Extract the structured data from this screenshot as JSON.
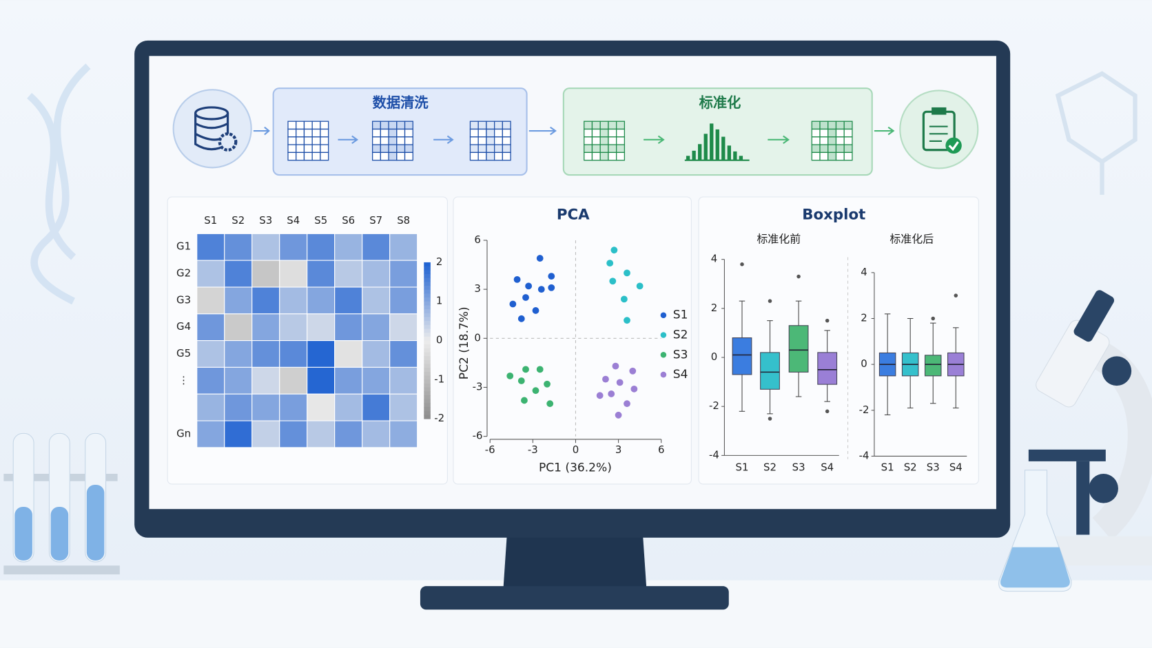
{
  "pipeline": {
    "steps": [
      "数据清洗",
      "标准化"
    ]
  },
  "chart_data": [
    {
      "type": "heatmap",
      "columns": [
        "S1",
        "S2",
        "S3",
        "S4",
        "S5",
        "S6",
        "S7",
        "S8"
      ],
      "rows": [
        "G1",
        "G2",
        "G3",
        "G4",
        "G5",
        "⋮",
        null,
        "Gn"
      ],
      "values": [
        [
          1.5,
          1.3,
          0.6,
          1.2,
          1.4,
          0.8,
          1.4,
          0.8
        ],
        [
          0.6,
          1.5,
          -0.8,
          -0.3,
          1.4,
          0.5,
          0.7,
          1.1
        ],
        [
          -0.5,
          1.0,
          1.5,
          0.7,
          1.0,
          1.5,
          0.6,
          1.1
        ],
        [
          1.2,
          -0.7,
          1.0,
          0.5,
          0.3,
          1.2,
          1.0,
          0.3
        ],
        [
          0.6,
          1.0,
          1.3,
          1.4,
          1.9,
          -0.2,
          0.7,
          1.3
        ],
        [
          1.2,
          1.0,
          0.3,
          -0.6,
          1.9,
          1.1,
          1.0,
          0.7
        ],
        [
          0.8,
          1.2,
          1.0,
          1.1,
          -0.1,
          0.7,
          1.6,
          0.6
        ],
        [
          1.0,
          1.8,
          0.4,
          1.3,
          0.5,
          1.2,
          0.7,
          0.9
        ]
      ],
      "clim": [
        -2,
        2
      ],
      "cticks": [
        2,
        1,
        0,
        -1,
        -2
      ],
      "colormap": [
        "#8c8c8c",
        "#ececec",
        "#1b5fd1"
      ]
    },
    {
      "type": "scatter",
      "title": "PCA",
      "xlabel": "PC1 (36.2%)",
      "ylabel": "PC2 (18.7%)",
      "xlim": [
        -6,
        6
      ],
      "ylim": [
        -6,
        6
      ],
      "xticks": [
        -6,
        -3,
        0,
        3,
        6
      ],
      "yticks": [
        -6,
        -3,
        0,
        3,
        6
      ],
      "legend": "right",
      "series": [
        {
          "name": "S1",
          "color": "#1f5fd0",
          "x": [
            -2.5,
            -4.1,
            -1.7,
            -2.4,
            -1.7,
            -3.3,
            -4.4,
            -3.5,
            -2.8,
            -3.8
          ],
          "values": [
            4.9,
            3.6,
            3.8,
            3.0,
            3.1,
            3.2,
            2.1,
            2.5,
            1.7,
            1.2
          ]
        },
        {
          "name": "S2",
          "color": "#2bbfc8",
          "x": [
            2.7,
            2.4,
            3.6,
            2.6,
            4.5,
            3.4,
            3.6
          ],
          "values": [
            5.4,
            4.6,
            4.0,
            3.5,
            3.2,
            2.4,
            1.1
          ]
        },
        {
          "name": "S3",
          "color": "#3cb371",
          "x": [
            -4.6,
            -3.5,
            -2.5,
            -3.8,
            -2.0,
            -2.8,
            -3.6,
            -1.8
          ],
          "values": [
            -2.3,
            -1.9,
            -1.9,
            -2.6,
            -2.8,
            -3.2,
            -3.8,
            -4.0
          ]
        },
        {
          "name": "S4",
          "color": "#9b7fd4",
          "x": [
            2.8,
            4.0,
            2.1,
            3.1,
            4.1,
            1.7,
            2.5,
            3.6,
            3.0
          ],
          "values": [
            -1.7,
            -2.0,
            -2.5,
            -2.7,
            -3.1,
            -3.5,
            -3.4,
            -4.0,
            -4.7
          ]
        }
      ]
    },
    {
      "type": "box",
      "title": "Boxplot",
      "panels": [
        {
          "subtitle": "标准化前",
          "ylim": [
            -4,
            4
          ],
          "yticks": [
            -4,
            -2,
            0,
            2,
            4
          ],
          "categories": [
            "S1",
            "S2",
            "S3",
            "S4"
          ],
          "colors": [
            "#3b7de0",
            "#35c0cc",
            "#4cb877",
            "#9a7fd6"
          ],
          "boxes": [
            {
              "whislo": -2.2,
              "q1": -0.7,
              "med": 0.1,
              "q3": 0.8,
              "whishi": 2.3,
              "fliers": [
                3.8
              ]
            },
            {
              "whislo": -2.3,
              "q1": -1.3,
              "med": -0.6,
              "q3": 0.2,
              "whishi": 1.5,
              "fliers": [
                2.3,
                -2.5
              ]
            },
            {
              "whislo": -1.6,
              "q1": -0.6,
              "med": 0.3,
              "q3": 1.3,
              "whishi": 2.3,
              "fliers": [
                3.3
              ]
            },
            {
              "whislo": -1.8,
              "q1": -1.1,
              "med": -0.5,
              "q3": 0.2,
              "whishi": 1.1,
              "fliers": [
                1.5,
                -2.2
              ]
            }
          ]
        },
        {
          "subtitle": "标准化后",
          "ylim": [
            -4,
            4
          ],
          "yticks": [
            -4,
            -2,
            0,
            2,
            4
          ],
          "categories": [
            "S1",
            "S2",
            "S3",
            "S4"
          ],
          "colors": [
            "#3b7de0",
            "#35c0cc",
            "#4cb877",
            "#9a7fd6"
          ],
          "boxes": [
            {
              "whislo": -2.2,
              "q1": -0.5,
              "med": 0,
              "q3": 0.5,
              "whishi": 2.2,
              "fliers": []
            },
            {
              "whislo": -1.9,
              "q1": -0.5,
              "med": 0,
              "q3": 0.5,
              "whishi": 2.0,
              "fliers": []
            },
            {
              "whislo": -1.7,
              "q1": -0.5,
              "med": 0,
              "q3": 0.4,
              "whishi": 1.8,
              "fliers": [
                2.0
              ]
            },
            {
              "whislo": -1.9,
              "q1": -0.5,
              "med": 0,
              "q3": 0.5,
              "whishi": 1.6,
              "fliers": [
                3.0
              ]
            }
          ]
        }
      ]
    }
  ]
}
